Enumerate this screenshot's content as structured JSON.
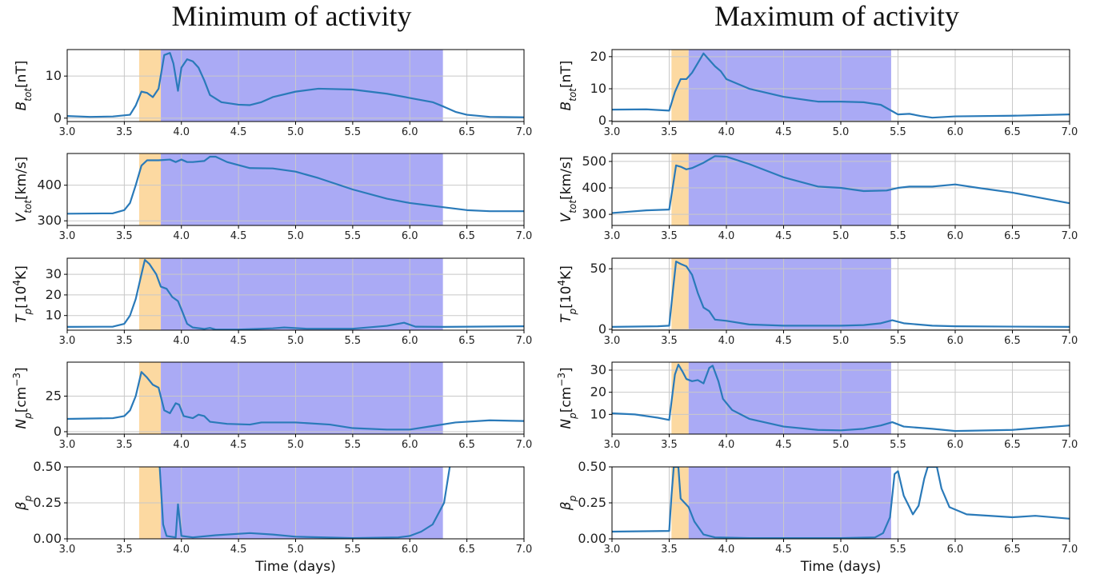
{
  "chart_data": [
    {
      "type": "line",
      "title": "Minimum of activity",
      "ylabel": [
        {
          "text": "B"
        },
        {
          "text": "tot",
          "shift": "sub"
        },
        {
          "text": "[nT]"
        }
      ],
      "x": [
        3.0,
        3.2,
        3.4,
        3.55,
        3.6,
        3.65,
        3.7,
        3.75,
        3.8,
        3.85,
        3.9,
        3.93,
        3.97,
        4.0,
        4.05,
        4.1,
        4.15,
        4.2,
        4.25,
        4.35,
        4.5,
        4.6,
        4.7,
        4.8,
        5.0,
        5.2,
        5.5,
        5.8,
        6.0,
        6.2,
        6.3,
        6.4,
        6.5,
        6.7,
        7.0
      ],
      "values": [
        0.5,
        0.3,
        0.4,
        0.8,
        3,
        6.3,
        6,
        5,
        7,
        15,
        15.5,
        13,
        6.5,
        12,
        14,
        13.5,
        12,
        9,
        5.5,
        3.8,
        3.2,
        3.1,
        3.8,
        5,
        6.3,
        7,
        6.8,
        5.8,
        4.8,
        3.8,
        2.7,
        1.5,
        0.8,
        0.3,
        0.2
      ],
      "color": "#2a7ab9",
      "spans": [
        {
          "start": 3.63,
          "end": 3.82,
          "color": "#fcd9a1"
        },
        {
          "start": 3.82,
          "end": 6.29,
          "color": "#aaaaf5"
        }
      ],
      "xlim": [
        3,
        7
      ],
      "xticks": [
        {
          "value": 3,
          "label": "3.0"
        },
        3.5,
        {
          "value": 4,
          "label": "4.0"
        },
        4.5,
        {
          "value": 5,
          "label": "5.0"
        },
        5.5,
        {
          "value": 6,
          "label": "6.0"
        },
        6.5,
        {
          "value": 7,
          "label": "7.0"
        }
      ],
      "ylim": [
        -0.8,
        16.3
      ],
      "yticks": [
        0,
        10
      ],
      "grid": true
    },
    {
      "type": "line",
      "ylabel": [
        {
          "text": "V"
        },
        {
          "text": "tot",
          "shift": "sub"
        },
        {
          "text": "[km/s]"
        }
      ],
      "x": [
        3.0,
        3.4,
        3.5,
        3.55,
        3.6,
        3.65,
        3.7,
        3.8,
        3.9,
        3.95,
        4.0,
        4.05,
        4.1,
        4.2,
        4.25,
        4.3,
        4.4,
        4.6,
        4.8,
        5.0,
        5.2,
        5.5,
        5.8,
        6.0,
        6.3,
        6.5,
        6.7,
        7.0
      ],
      "values": [
        320,
        321,
        330,
        350,
        400,
        455,
        470,
        470,
        472,
        465,
        472,
        465,
        465,
        468,
        480,
        480,
        465,
        448,
        447,
        438,
        420,
        388,
        362,
        350,
        338,
        330,
        327,
        327
      ],
      "color": "#2a7ab9",
      "spans": [
        {
          "start": 3.63,
          "end": 3.82,
          "color": "#fcd9a1"
        },
        {
          "start": 3.82,
          "end": 6.29,
          "color": "#aaaaf5"
        }
      ],
      "xlim": [
        3,
        7
      ],
      "xticks": [
        {
          "value": 3,
          "label": "3.0"
        },
        3.5,
        {
          "value": 4,
          "label": "4.0"
        },
        4.5,
        {
          "value": 5,
          "label": "5.0"
        },
        5.5,
        {
          "value": 6,
          "label": "6.0"
        },
        6.5,
        {
          "value": 7,
          "label": "7.0"
        }
      ],
      "ylim": [
        287,
        489
      ],
      "yticks": [
        300,
        400
      ],
      "grid": true
    },
    {
      "type": "line",
      "ylabel": [
        {
          "text": "T"
        },
        {
          "text": "p",
          "shift": "sub"
        },
        {
          "text": "[10"
        },
        {
          "text": "4",
          "shift": "super"
        },
        {
          "text": "K]"
        }
      ],
      "x": [
        3.0,
        3.4,
        3.5,
        3.55,
        3.6,
        3.65,
        3.68,
        3.72,
        3.78,
        3.82,
        3.87,
        3.92,
        3.97,
        4.0,
        4.05,
        4.1,
        4.2,
        4.25,
        4.3,
        4.5,
        4.8,
        4.9,
        5.1,
        5.5,
        5.8,
        5.95,
        6.05,
        6.3,
        7.0
      ],
      "values": [
        4.5,
        4.6,
        6,
        10,
        18,
        30,
        37,
        35,
        30,
        24,
        23,
        19,
        17,
        13,
        6,
        4.2,
        3.5,
        4,
        3.2,
        3.2,
        3.8,
        4.2,
        3.6,
        3.6,
        5,
        6.5,
        4.6,
        4.5,
        4.8
      ],
      "color": "#2a7ab9",
      "spans": [
        {
          "start": 3.63,
          "end": 3.82,
          "color": "#fcd9a1"
        },
        {
          "start": 3.82,
          "end": 6.29,
          "color": "#aaaaf5"
        }
      ],
      "xlim": [
        3,
        7
      ],
      "xticks": [
        {
          "value": 3,
          "label": "3.0"
        },
        3.5,
        {
          "value": 4,
          "label": "4.0"
        },
        4.5,
        {
          "value": 5,
          "label": "5.0"
        },
        5.5,
        {
          "value": 6,
          "label": "6.0"
        },
        6.5,
        {
          "value": 7,
          "label": "7.0"
        }
      ],
      "ylim": [
        2.9,
        37.8
      ],
      "yticks": [
        10,
        20,
        30
      ],
      "grid": true
    },
    {
      "type": "line",
      "ylabel": [
        {
          "text": "N"
        },
        {
          "text": "p",
          "shift": "sub"
        },
        {
          "text": "[cm"
        },
        {
          "text": "−3",
          "shift": "super"
        },
        {
          "text": "]"
        }
      ],
      "x": [
        3.0,
        3.4,
        3.5,
        3.55,
        3.6,
        3.65,
        3.7,
        3.75,
        3.8,
        3.85,
        3.9,
        3.95,
        3.98,
        4.02,
        4.1,
        4.15,
        4.2,
        4.25,
        4.4,
        4.6,
        4.7,
        4.85,
        5.0,
        5.3,
        5.5,
        5.8,
        6.0,
        6.2,
        6.4,
        6.7,
        7.0
      ],
      "values": [
        9,
        9.5,
        11,
        15,
        25,
        42,
        38,
        33,
        31,
        15,
        13,
        20,
        19,
        11,
        9.5,
        12,
        11,
        7,
        5.5,
        5,
        6.5,
        6.5,
        6.5,
        5,
        2.5,
        1.5,
        1.5,
        4,
        6.5,
        8,
        7.5
      ],
      "color": "#2a7ab9",
      "spans": [
        {
          "start": 3.63,
          "end": 3.82,
          "color": "#fcd9a1"
        },
        {
          "start": 3.82,
          "end": 6.29,
          "color": "#aaaaf5"
        }
      ],
      "xlim": [
        3,
        7
      ],
      "xticks": [
        {
          "value": 3,
          "label": "3.0"
        },
        3.5,
        {
          "value": 4,
          "label": "4.0"
        },
        4.5,
        {
          "value": 5,
          "label": "5.0"
        },
        5.5,
        {
          "value": 6,
          "label": "6.0"
        },
        6.5,
        {
          "value": 7,
          "label": "7.0"
        }
      ],
      "ylim": [
        -1.7,
        48.9
      ],
      "yticks": [
        0,
        25
      ],
      "grid": true
    },
    {
      "type": "line",
      "xlabel": "Time (days)",
      "ylabel": [
        {
          "text": "β"
        },
        {
          "text": "p",
          "shift": "sub"
        }
      ],
      "x": [
        3.81,
        3.84,
        3.87,
        3.95,
        3.97,
        4.0,
        4.1,
        4.3,
        4.6,
        4.8,
        5.0,
        5.5,
        5.9,
        6.0,
        6.1,
        6.2,
        6.3,
        6.35
      ],
      "values": [
        0.5,
        0.1,
        0.02,
        0.01,
        0.24,
        0.02,
        0.01,
        0.025,
        0.04,
        0.03,
        0.015,
        0.005,
        0.01,
        0.02,
        0.05,
        0.1,
        0.25,
        0.5
      ],
      "color": "#2a7ab9",
      "spans": [
        {
          "start": 3.63,
          "end": 3.82,
          "color": "#fcd9a1"
        },
        {
          "start": 3.82,
          "end": 6.29,
          "color": "#aaaaf5"
        }
      ],
      "xlim": [
        3,
        7
      ],
      "xticks": [
        {
          "value": 3,
          "label": "3.0"
        },
        3.5,
        {
          "value": 4,
          "label": "4.0"
        },
        4.5,
        {
          "value": 5,
          "label": "5.0"
        },
        5.5,
        {
          "value": 6,
          "label": "6.0"
        },
        6.5,
        {
          "value": 7,
          "label": "7.0"
        }
      ],
      "ylim": [
        0,
        0.5
      ],
      "yticks": [
        {
          "value": 0,
          "label": "0.00"
        },
        0.25,
        {
          "value": 0.5,
          "label": "0.50"
        }
      ],
      "grid": true
    },
    {
      "type": "line",
      "title": "Maximum of activity",
      "ylabel": [
        {
          "text": "B"
        },
        {
          "text": "tot",
          "shift": "sub"
        },
        {
          "text": "[nT]"
        }
      ],
      "x": [
        3.0,
        3.3,
        3.5,
        3.55,
        3.6,
        3.65,
        3.7,
        3.75,
        3.8,
        3.85,
        3.9,
        3.95,
        4.0,
        4.2,
        4.5,
        4.8,
        5.0,
        5.2,
        5.35,
        5.45,
        5.5,
        5.6,
        5.7,
        5.8,
        6.0,
        6.5,
        7.0
      ],
      "values": [
        3.5,
        3.6,
        3.2,
        9,
        13,
        13,
        15,
        18,
        21,
        19,
        17,
        15.5,
        13,
        10,
        7.5,
        6,
        6,
        5.8,
        5,
        3,
        2,
        2.2,
        1.5,
        1,
        1.4,
        1.6,
        2
      ],
      "color": "#2a7ab9",
      "spans": [
        {
          "start": 3.52,
          "end": 3.67,
          "color": "#fcd9a1"
        },
        {
          "start": 3.67,
          "end": 5.44,
          "color": "#aaaaf5"
        }
      ],
      "xlim": [
        3,
        7
      ],
      "xticks": [
        {
          "value": 3,
          "label": "3.0"
        },
        3.5,
        {
          "value": 4,
          "label": "4.0"
        },
        4.5,
        {
          "value": 5,
          "label": "5.0"
        },
        5.5,
        {
          "value": 6,
          "label": "6.0"
        },
        6.5,
        {
          "value": 7,
          "label": "7.0"
        }
      ],
      "ylim": [
        -0.2,
        22.2
      ],
      "yticks": [
        0,
        10,
        20
      ],
      "grid": true
    },
    {
      "type": "line",
      "ylabel": [
        {
          "text": "V"
        },
        {
          "text": "tot",
          "shift": "sub"
        },
        {
          "text": "[km/s]"
        }
      ],
      "x": [
        3.0,
        3.3,
        3.5,
        3.53,
        3.56,
        3.6,
        3.65,
        3.7,
        3.8,
        3.9,
        4.0,
        4.2,
        4.5,
        4.8,
        5.0,
        5.2,
        5.4,
        5.5,
        5.6,
        5.8,
        6.0,
        6.2,
        6.5,
        6.8,
        7.0
      ],
      "values": [
        305,
        315,
        318,
        400,
        485,
        480,
        470,
        475,
        495,
        520,
        518,
        490,
        440,
        405,
        400,
        388,
        390,
        400,
        405,
        405,
        413,
        400,
        382,
        358,
        342
      ],
      "color": "#2a7ab9",
      "spans": [
        {
          "start": 3.52,
          "end": 3.67,
          "color": "#fcd9a1"
        },
        {
          "start": 3.67,
          "end": 5.44,
          "color": "#aaaaf5"
        }
      ],
      "xlim": [
        3,
        7
      ],
      "xticks": [
        {
          "value": 3,
          "label": "3.0"
        },
        3.5,
        {
          "value": 4,
          "label": "4.0"
        },
        4.5,
        {
          "value": 5,
          "label": "5.0"
        },
        5.5,
        {
          "value": 6,
          "label": "6.0"
        },
        6.5,
        {
          "value": 7,
          "label": "7.0"
        }
      ],
      "ylim": [
        258,
        530
      ],
      "yticks": [
        300,
        400,
        500
      ],
      "grid": true
    },
    {
      "type": "line",
      "ylabel": [
        {
          "text": "T"
        },
        {
          "text": "p",
          "shift": "sub"
        },
        {
          "text": "[10"
        },
        {
          "text": "4",
          "shift": "super"
        },
        {
          "text": "K]"
        }
      ],
      "x": [
        3.0,
        3.4,
        3.5,
        3.53,
        3.56,
        3.6,
        3.65,
        3.7,
        3.75,
        3.8,
        3.85,
        3.9,
        4.0,
        4.2,
        4.5,
        5.0,
        5.2,
        5.35,
        5.45,
        5.55,
        5.8,
        6.0,
        7.0
      ],
      "values": [
        2,
        2.5,
        3,
        30,
        56,
        54,
        52,
        45,
        30,
        18,
        15,
        8,
        7,
        4,
        3,
        3,
        3.5,
        5,
        7.5,
        5,
        3,
        2.5,
        2
      ],
      "color": "#2a7ab9",
      "spans": [
        {
          "start": 3.52,
          "end": 3.67,
          "color": "#fcd9a1"
        },
        {
          "start": 3.67,
          "end": 5.44,
          "color": "#aaaaf5"
        }
      ],
      "xlim": [
        3,
        7
      ],
      "xticks": [
        {
          "value": 3,
          "label": "3.0"
        },
        3.5,
        {
          "value": 4,
          "label": "4.0"
        },
        4.5,
        {
          "value": 5,
          "label": "5.0"
        },
        5.5,
        {
          "value": 6,
          "label": "6.0"
        },
        6.5,
        {
          "value": 7,
          "label": "7.0"
        }
      ],
      "ylim": [
        -0.7,
        58.7
      ],
      "yticks": [
        0,
        50
      ],
      "grid": true
    },
    {
      "type": "line",
      "ylabel": [
        {
          "text": "N"
        },
        {
          "text": "p",
          "shift": "sub"
        },
        {
          "text": "[cm"
        },
        {
          "text": "−3",
          "shift": "super"
        },
        {
          "text": "]"
        }
      ],
      "x": [
        3.0,
        3.2,
        3.4,
        3.5,
        3.55,
        3.58,
        3.62,
        3.65,
        3.7,
        3.75,
        3.8,
        3.85,
        3.88,
        3.93,
        3.97,
        4.05,
        4.2,
        4.5,
        4.8,
        5.0,
        5.2,
        5.35,
        5.45,
        5.55,
        5.8,
        6.0,
        6.5,
        7.0
      ],
      "values": [
        10.5,
        10,
        8.5,
        7.5,
        28,
        32.5,
        29,
        26,
        25,
        25.5,
        24,
        31,
        32,
        25,
        17,
        12,
        8,
        4.5,
        3,
        2.8,
        3.5,
        5,
        6.5,
        4.5,
        3.5,
        2.5,
        3,
        5
      ],
      "color": "#2a7ab9",
      "spans": [
        {
          "start": 3.52,
          "end": 3.67,
          "color": "#fcd9a1"
        },
        {
          "start": 3.67,
          "end": 5.44,
          "color": "#aaaaf5"
        }
      ],
      "xlim": [
        3,
        7
      ],
      "xticks": [
        {
          "value": 3,
          "label": "3.0"
        },
        3.5,
        {
          "value": 4,
          "label": "4.0"
        },
        4.5,
        {
          "value": 5,
          "label": "5.0"
        },
        5.5,
        {
          "value": 6,
          "label": "6.0"
        },
        6.5,
        {
          "value": 7,
          "label": "7.0"
        }
      ],
      "ylim": [
        1.1,
        33.6
      ],
      "yticks": [
        10,
        20,
        30
      ],
      "grid": true
    },
    {
      "type": "line",
      "xlabel": "Time (days)",
      "ylabel": [
        {
          "text": "β"
        },
        {
          "text": "p",
          "shift": "sub"
        }
      ],
      "x": [
        3.0,
        3.5,
        3.52,
        3.54,
        3.58,
        3.6,
        3.67,
        3.72,
        3.8,
        3.9,
        4.2,
        5.0,
        5.3,
        5.37,
        5.43,
        5.47,
        5.5,
        5.55,
        5.6,
        5.63,
        5.68,
        5.73,
        5.76,
        5.84,
        5.88,
        5.95,
        6.1,
        6.5,
        6.7,
        7.0
      ],
      "values": [
        0.05,
        0.055,
        0.3,
        0.5,
        0.5,
        0.28,
        0.22,
        0.12,
        0.03,
        0.01,
        0.005,
        0.005,
        0.01,
        0.04,
        0.15,
        0.45,
        0.47,
        0.3,
        0.22,
        0.17,
        0.23,
        0.42,
        0.5,
        0.5,
        0.35,
        0.22,
        0.17,
        0.15,
        0.16,
        0.14
      ],
      "color": "#2a7ab9",
      "spans": [
        {
          "start": 3.52,
          "end": 3.67,
          "color": "#fcd9a1"
        },
        {
          "start": 3.67,
          "end": 5.44,
          "color": "#aaaaf5"
        }
      ],
      "xlim": [
        3,
        7
      ],
      "xticks": [
        {
          "value": 3,
          "label": "3.0"
        },
        3.5,
        {
          "value": 4,
          "label": "4.0"
        },
        4.5,
        {
          "value": 5,
          "label": "5.0"
        },
        5.5,
        {
          "value": 6,
          "label": "6.0"
        },
        6.5,
        {
          "value": 7,
          "label": "7.0"
        }
      ],
      "ylim": [
        0,
        0.5
      ],
      "yticks": [
        {
          "value": 0,
          "label": "0.00"
        },
        0.25,
        {
          "value": 0.5,
          "label": "0.50"
        }
      ],
      "grid": true
    }
  ]
}
